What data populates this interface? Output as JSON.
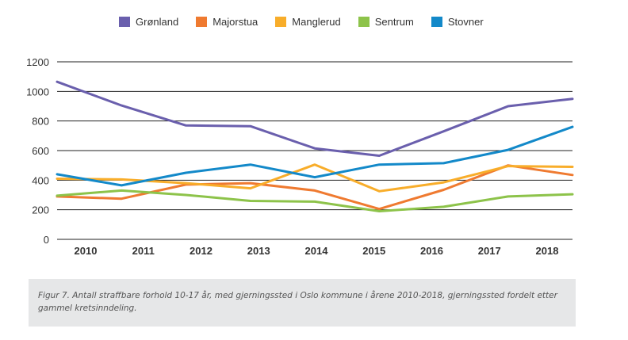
{
  "chart_data": {
    "type": "line",
    "categories": [
      "2010",
      "2011",
      "2012",
      "2013",
      "2014",
      "2015",
      "2016",
      "2017",
      "2018"
    ],
    "ylim": [
      0,
      1200
    ],
    "yticks": [
      0,
      200,
      400,
      600,
      800,
      1000,
      1200
    ],
    "grid": true,
    "legend_position": "top",
    "series": [
      {
        "name": "Grønland",
        "color": "#6a5fad",
        "values": [
          1065,
          905,
          770,
          765,
          615,
          565,
          730,
          900,
          950
        ]
      },
      {
        "name": "Majorstua",
        "color": "#ef7a30",
        "values": [
          290,
          275,
          370,
          380,
          330,
          205,
          335,
          500,
          435
        ]
      },
      {
        "name": "Manglerud",
        "color": "#f8ad2a",
        "values": [
          410,
          405,
          380,
          345,
          505,
          325,
          385,
          495,
          490
        ]
      },
      {
        "name": "Sentrum",
        "color": "#8dc34a",
        "values": [
          295,
          330,
          300,
          260,
          255,
          190,
          220,
          290,
          305
        ]
      },
      {
        "name": "Stovner",
        "color": "#1389c9",
        "values": [
          440,
          365,
          450,
          505,
          420,
          505,
          515,
          605,
          760
        ]
      }
    ]
  },
  "caption": "Figur 7. Antall straffbare forhold 10-17 år, med gjerningssted i Oslo kommune i årene 2010-2018, gjerningssted fordelt etter gammel kretsinndeling."
}
